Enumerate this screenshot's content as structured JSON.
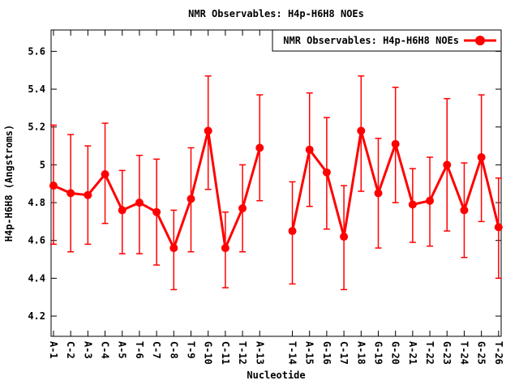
{
  "title": "NMR Observables: H4p-H6H8 NOEs",
  "legend": {
    "label": "NMR Observables: H4p-H6H8 NOEs",
    "position": "top-right",
    "boxed": true
  },
  "colors": {
    "series": "#ff0000",
    "axis": "#000000",
    "background": "#ffffff"
  },
  "chart_data": {
    "type": "line",
    "title": "NMR Observables: H4p-H6H8 NOEs",
    "xlabel": "Nucleotide",
    "ylabel": "H4p-H6H8 (Angstroms)",
    "grid": false,
    "error_bars": true,
    "marker": "filled-circle",
    "legend_position": "top-right-boxed",
    "xlim": [
      0.86,
      27.05
    ],
    "ylim": [
      4.093,
      5.713
    ],
    "yticks": [
      4.2,
      4.4,
      4.6,
      4.8,
      5.0,
      5.2,
      5.4,
      5.6
    ],
    "ytick_labels": [
      "4.2",
      "4.4",
      "4.6",
      "4.8",
      "5",
      "5.2",
      "5.4",
      "5.6"
    ],
    "x_tick_labels_rotated_90": true,
    "series": [
      {
        "name": "NMR Observables: H4p-H6H8 NOEs",
        "color": "#ff0000",
        "segments": [
          [
            0,
            12
          ],
          [
            13,
            25
          ]
        ],
        "points": [
          {
            "label": "A-1",
            "x": 1,
            "y": 4.89,
            "y_lo": 4.58,
            "y_hi": 5.21
          },
          {
            "label": "C-2",
            "x": 2,
            "y": 4.85,
            "y_lo": 4.54,
            "y_hi": 5.16
          },
          {
            "label": "A-3",
            "x": 3,
            "y": 4.84,
            "y_lo": 4.58,
            "y_hi": 5.1
          },
          {
            "label": "C-4",
            "x": 4,
            "y": 4.95,
            "y_lo": 4.69,
            "y_hi": 5.22
          },
          {
            "label": "A-5",
            "x": 5,
            "y": 4.76,
            "y_lo": 4.53,
            "y_hi": 4.97
          },
          {
            "label": "T-6",
            "x": 6,
            "y": 4.8,
            "y_lo": 4.53,
            "y_hi": 5.05
          },
          {
            "label": "C-7",
            "x": 7,
            "y": 4.75,
            "y_lo": 4.47,
            "y_hi": 5.03
          },
          {
            "label": "C-8",
            "x": 8,
            "y": 4.56,
            "y_lo": 4.34,
            "y_hi": 4.76
          },
          {
            "label": "T-9",
            "x": 9,
            "y": 4.82,
            "y_lo": 4.54,
            "y_hi": 5.09
          },
          {
            "label": "G-10",
            "x": 10,
            "y": 5.18,
            "y_lo": 4.87,
            "y_hi": 5.47
          },
          {
            "label": "C-11",
            "x": 11,
            "y": 4.56,
            "y_lo": 4.35,
            "y_hi": 4.75
          },
          {
            "label": "T-12",
            "x": 12,
            "y": 4.77,
            "y_lo": 4.54,
            "y_hi": 5.0
          },
          {
            "label": "A-13",
            "x": 13,
            "y": 5.09,
            "y_lo": 4.81,
            "y_hi": 5.37
          },
          {
            "label": "T-14",
            "x": 14.9,
            "y": 4.65,
            "y_lo": 4.37,
            "y_hi": 4.91
          },
          {
            "label": "A-15",
            "x": 15.9,
            "y": 5.08,
            "y_lo": 4.78,
            "y_hi": 5.38
          },
          {
            "label": "G-16",
            "x": 16.9,
            "y": 4.96,
            "y_lo": 4.66,
            "y_hi": 5.25
          },
          {
            "label": "C-17",
            "x": 17.9,
            "y": 4.62,
            "y_lo": 4.34,
            "y_hi": 4.89
          },
          {
            "label": "A-18",
            "x": 18.9,
            "y": 5.18,
            "y_lo": 4.86,
            "y_hi": 5.47
          },
          {
            "label": "G-19",
            "x": 19.9,
            "y": 4.85,
            "y_lo": 4.56,
            "y_hi": 5.14
          },
          {
            "label": "G-20",
            "x": 20.9,
            "y": 5.11,
            "y_lo": 4.8,
            "y_hi": 5.41
          },
          {
            "label": "A-21",
            "x": 21.9,
            "y": 4.79,
            "y_lo": 4.59,
            "y_hi": 4.98
          },
          {
            "label": "T-22",
            "x": 22.9,
            "y": 4.81,
            "y_lo": 4.57,
            "y_hi": 5.04
          },
          {
            "label": "G-23",
            "x": 23.9,
            "y": 5.0,
            "y_lo": 4.65,
            "y_hi": 5.35
          },
          {
            "label": "T-24",
            "x": 24.9,
            "y": 4.76,
            "y_lo": 4.51,
            "y_hi": 5.01
          },
          {
            "label": "G-25",
            "x": 25.9,
            "y": 5.04,
            "y_lo": 4.7,
            "y_hi": 5.37
          },
          {
            "label": "T-26",
            "x": 26.9,
            "y": 4.67,
            "y_lo": 4.4,
            "y_hi": 4.93
          }
        ]
      }
    ]
  }
}
